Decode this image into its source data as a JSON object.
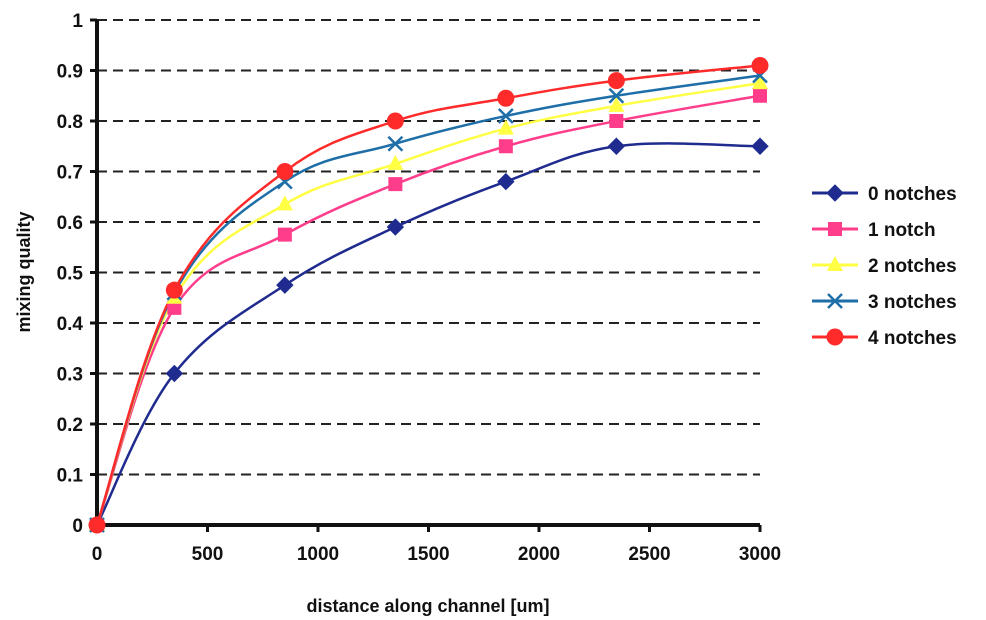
{
  "chart_data": {
    "type": "line",
    "title": "",
    "xlabel": "distance along channel [um]",
    "ylabel": "mixing quality",
    "xlim": [
      0,
      3000
    ],
    "ylim": [
      0,
      1
    ],
    "x_ticks": [
      "0",
      "500",
      "1000",
      "1500",
      "2000",
      "2500",
      "3000"
    ],
    "y_ticks": [
      "0",
      "0.1",
      "0.2",
      "0.3",
      "0.4",
      "0.5",
      "0.6",
      "0.7",
      "0.8",
      "0.9",
      "1"
    ],
    "grid": "horizontal dashed",
    "legend_position": "right",
    "x": [
      0,
      350,
      850,
      1350,
      1850,
      2350,
      3000
    ],
    "series": [
      {
        "name": "0 notches",
        "values": [
          0,
          0.3,
          0.475,
          0.59,
          0.68,
          0.75,
          0.75
        ],
        "color": "#1f2b8f",
        "marker": "diamond"
      },
      {
        "name": "1 notch",
        "values": [
          0,
          0.43,
          0.575,
          0.675,
          0.75,
          0.8,
          0.85
        ],
        "color": "#ff3d8a",
        "marker": "square"
      },
      {
        "name": "2 notches",
        "values": [
          0,
          0.45,
          0.635,
          0.715,
          0.785,
          0.83,
          0.875
        ],
        "color": "#ffff44",
        "marker": "triangle"
      },
      {
        "name": "3 notches",
        "values": [
          0,
          0.46,
          0.68,
          0.755,
          0.81,
          0.85,
          0.89
        ],
        "color": "#1e6ea8",
        "marker": "x"
      },
      {
        "name": "4 notches",
        "values": [
          0,
          0.465,
          0.7,
          0.8,
          0.845,
          0.88,
          0.91
        ],
        "color": "#ff2b2b",
        "marker": "circle"
      }
    ]
  }
}
